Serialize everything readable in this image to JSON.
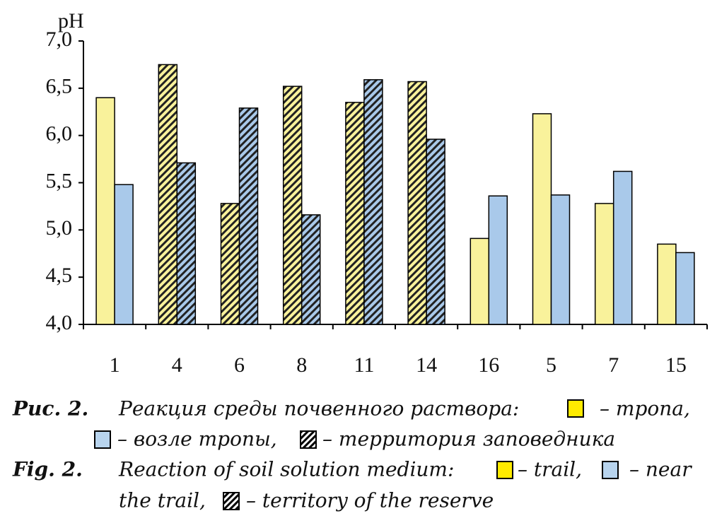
{
  "chart_data": {
    "type": "bar",
    "y_label": "pH",
    "categories": [
      "1",
      "4",
      "6",
      "8",
      "11",
      "14",
      "16",
      "5",
      "7",
      "15"
    ],
    "hatched": [
      false,
      true,
      true,
      true,
      true,
      true,
      false,
      false,
      false,
      false
    ],
    "series": [
      {
        "name": "trail",
        "color": "#f9f29b",
        "values": [
          6.4,
          6.75,
          5.28,
          6.52,
          6.35,
          6.57,
          4.91,
          6.23,
          5.28,
          4.85
        ]
      },
      {
        "name": "near the trail",
        "color": "#a9c9ea",
        "values": [
          5.48,
          5.71,
          6.29,
          5.16,
          6.59,
          5.96,
          5.36,
          5.37,
          5.62,
          4.76
        ]
      }
    ],
    "ylim": [
      4,
      7
    ],
    "yticks": [
      {
        "value": 4,
        "label": "4,0"
      },
      {
        "value": 4.5,
        "label": "4,5"
      },
      {
        "value": 5,
        "label": "5,0"
      },
      {
        "value": 5.5,
        "label": "5,5"
      },
      {
        "value": 6,
        "label": "6,0"
      },
      {
        "value": 6.5,
        "label": "6,5"
      },
      {
        "value": 7,
        "label": "7,0"
      }
    ]
  },
  "caption": {
    "ru_label": "Рис. 2.",
    "ru_text": "Реакция среды почвенного раствора:",
    "ru_trail": "– тропа,",
    "ru_near": "– возле тропы,",
    "ru_reserve": "– территория заповедника",
    "en_label": "Fig. 2.",
    "en_text": "Reaction of soil solution medium:",
    "en_trail": "– trail,",
    "en_near_1": "– near",
    "en_near_2": "the trail,",
    "en_reserve": "– territory of the reserve"
  }
}
